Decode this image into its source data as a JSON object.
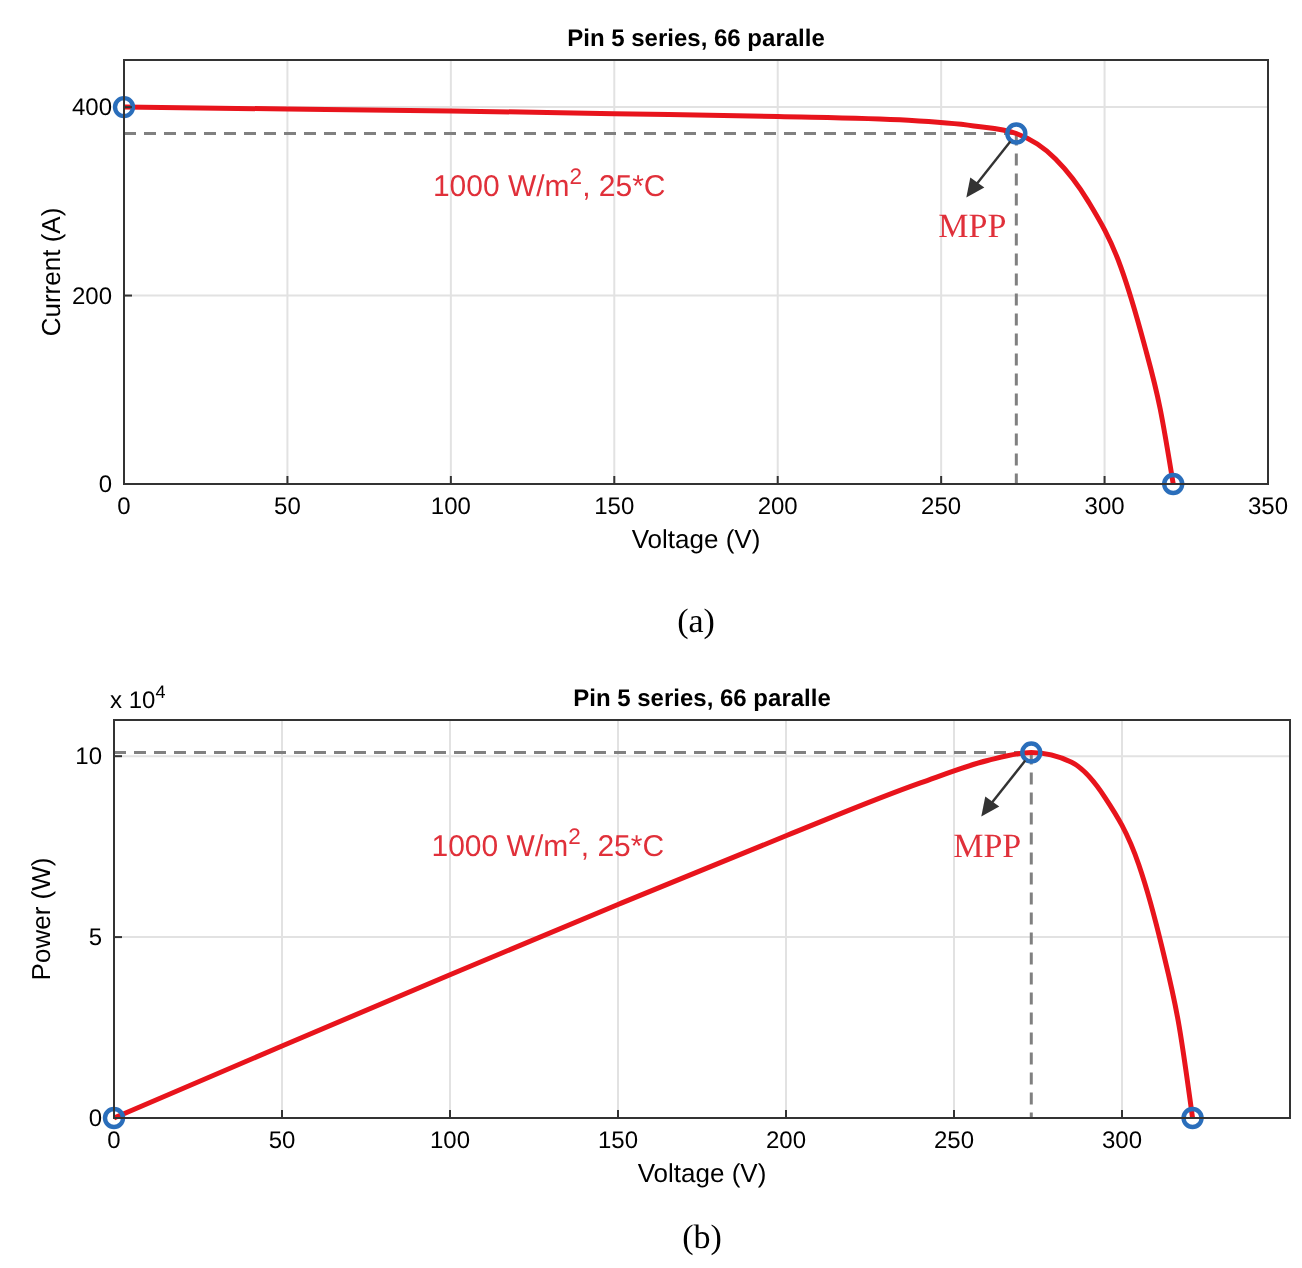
{
  "chart_data": [
    {
      "type": "line",
      "title": "Pin 5 series, 66 paralle",
      "xlabel": "Voltage (V)",
      "ylabel": "Current (A)",
      "xlim": [
        0,
        350
      ],
      "xticks": [
        0,
        50,
        100,
        150,
        200,
        250,
        300,
        350
      ],
      "ylim": [
        0,
        450
      ],
      "yticks": [
        0,
        200,
        400
      ],
      "grid": true,
      "series": [
        {
          "color": "#e8141c",
          "marker": "none",
          "x": [
            0,
            50,
            100,
            150,
            200,
            240,
            260,
            273,
            285,
            295,
            305,
            312,
            317,
            321
          ],
          "values": [
            400,
            398,
            396,
            393,
            390,
            386,
            380,
            372,
            345,
            300,
            230,
            150,
            80,
            0
          ]
        },
        {
          "type": "scatter",
          "color": "#2a6ebb",
          "marker": "circle",
          "x": [
            0,
            273,
            321
          ],
          "values": [
            400,
            372,
            0
          ]
        }
      ],
      "ref_lines": [
        {
          "axis": "y",
          "value": 372,
          "color": "#808080",
          "line_style": "dashed"
        },
        {
          "axis": "x",
          "value": 273,
          "color": "#808080",
          "line_style": "dashed"
        }
      ],
      "annotations": [
        "1000 W/m$^{2}$, 25*C",
        {
          "text": "MPP",
          "x": 273,
          "y": 372
        },
        "(a)"
      ]
    },
    {
      "type": "line",
      "title": "Pin 5 series, 66 paralle",
      "xlabel": "Voltage (V)",
      "ylabel": "Power (W)",
      "xlim": [
        0,
        350
      ],
      "xticks": [
        0,
        50,
        100,
        150,
        200,
        250,
        300
      ],
      "ylim": [
        0,
        11
      ],
      "yticks": [
        0,
        5,
        10
      ],
      "grid": true,
      "series": [
        {
          "color": "#e8141c",
          "marker": "none",
          "x": [
            0,
            50,
            100,
            150,
            200,
            240,
            260,
            273,
            285,
            295,
            305,
            312,
            317,
            321
          ],
          "values": [
            0,
            1.99,
            3.96,
            5.9,
            7.8,
            9.26,
            9.88,
            10.1,
            9.83,
            8.85,
            7.0,
            4.68,
            2.54,
            0
          ]
        },
        {
          "type": "scatter",
          "color": "#2a6ebb",
          "marker": "circle",
          "x": [
            0,
            273,
            321
          ],
          "values": [
            0,
            10.1,
            0
          ]
        }
      ],
      "ref_lines": [
        {
          "axis": "y",
          "value": 10.1,
          "color": "#808080",
          "line_style": "dashed"
        },
        {
          "axis": "x",
          "value": 273,
          "color": "#808080",
          "line_style": "dashed"
        }
      ],
      "annotations": [
        "x 10$^{4}$",
        "1000 W/m$^{2}$, 25*C",
        {
          "text": "MPP",
          "x": 273,
          "y": 10.1
        },
        "(b)"
      ]
    }
  ]
}
